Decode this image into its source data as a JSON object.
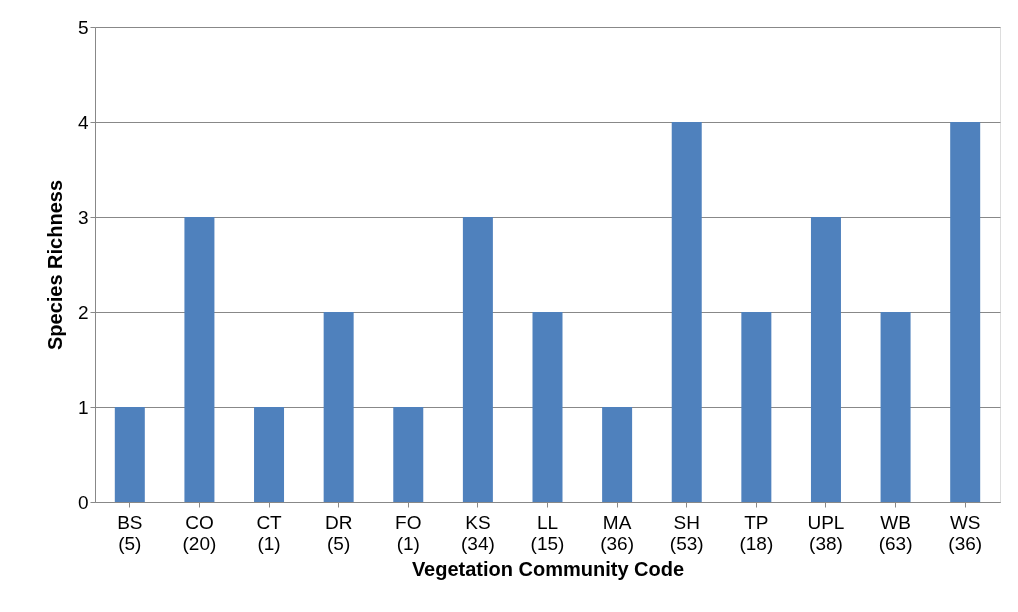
{
  "chart_data": {
    "type": "bar",
    "xlabel": "Vegetation Community Code",
    "ylabel": "Species Richness",
    "categories": [
      "BS\n(5)",
      "CO\n(20)",
      "CT\n(1)",
      "DR\n(5)",
      "FO\n(1)",
      "KS\n(34)",
      "LL\n(15)",
      "MA\n(36)",
      "SH\n(53)",
      "TP\n(18)",
      "UPL\n(38)",
      "WB\n(63)",
      "WS\n(36)"
    ],
    "values": [
      1,
      3,
      1,
      2,
      1,
      3,
      2,
      1,
      4,
      2,
      3,
      2,
      4
    ],
    "color": "#4f81bd",
    "ylim": [
      0,
      5
    ],
    "yticks": [
      0,
      1,
      2,
      3,
      4,
      5
    ],
    "grid": "y"
  }
}
